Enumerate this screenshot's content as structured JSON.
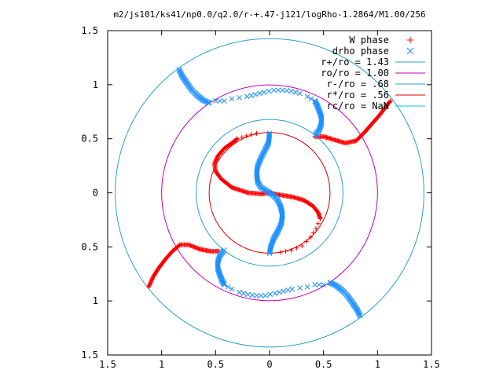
{
  "chart_data": {
    "type": "scatter",
    "title": "m2/js101/ks41/np0.0/q2.0/r-+.47-j121/logRho-1.2864/M1.00/256",
    "xlim": [
      -1.5,
      1.5
    ],
    "ylim": [
      -1.5,
      1.5
    ],
    "x_ticks": [
      -1.5,
      -1,
      -0.5,
      0,
      0.5,
      1,
      1.5
    ],
    "x_tick_labels": [
      "1.5",
      "1",
      "0.5",
      "0",
      "0.5",
      "1",
      "1.5"
    ],
    "y_ticks": [
      1.5,
      1,
      0.5,
      0,
      -0.5,
      -1,
      -1.5
    ],
    "y_tick_labels": [
      "1.5",
      "1",
      "0.5",
      "0",
      "0.5",
      "1",
      "1.5"
    ],
    "grid": false,
    "legend_position": "top-right",
    "colors": {
      "w_phase": "#ff0000",
      "drho_phase": "#1e90ff",
      "r_plus": "#2b9fd1",
      "ro": "#c000c0",
      "r_minus": "#2b9fd1",
      "r_star": "#dd0000",
      "rc": "#00c8c8"
    },
    "circles": [
      {
        "label": "r+/ro = 1.43",
        "radius": 1.43,
        "color_key": "r_plus"
      },
      {
        "label": "ro/ro = 1.00",
        "radius": 1.0,
        "color_key": "ro"
      },
      {
        "label": "r-/ro = .68",
        "radius": 0.68,
        "color_key": "r_minus"
      },
      {
        "label": "r*/ro = .56",
        "radius": 0.56,
        "color_key": "r_star"
      },
      {
        "label": "rc/ro = NaN",
        "radius": null,
        "color_key": "rc"
      }
    ],
    "series": [
      {
        "name": "W phase",
        "marker": "plus",
        "color_key": "w_phase",
        "arms": [
          {
            "points": [
              [
                0,
                0
              ],
              [
                -0.08,
                -0.01
              ],
              [
                -0.2,
                0.0
              ],
              [
                -0.35,
                0.05
              ],
              [
                -0.45,
                0.13
              ],
              [
                -0.5,
                0.2
              ],
              [
                -0.51,
                0.27
              ],
              [
                -0.48,
                0.34
              ],
              [
                -0.42,
                0.41
              ],
              [
                -0.35,
                0.46
              ],
              [
                -0.3,
                0.5
              ]
            ],
            "dense": true
          },
          {
            "points": [
              [
                -0.3,
                0.5
              ],
              [
                -0.17,
                0.54
              ],
              [
                -0.12,
                0.55
              ]
            ],
            "dense": false
          },
          {
            "points": [
              [
                0,
                0
              ],
              [
                0.1,
                -0.02
              ],
              [
                0.22,
                -0.04
              ],
              [
                0.32,
                -0.07
              ],
              [
                0.4,
                -0.12
              ],
              [
                0.45,
                -0.18
              ],
              [
                0.47,
                -0.24
              ]
            ],
            "dense": true
          },
          {
            "points": [
              [
                0.47,
                -0.24
              ],
              [
                0.43,
                -0.33
              ],
              [
                0.38,
                -0.41
              ],
              [
                0.3,
                -0.49
              ],
              [
                0.2,
                -0.53
              ],
              [
                0.1,
                -0.55
              ]
            ],
            "dense": false
          },
          {
            "points": [
              [
                0.42,
                0.52
              ],
              [
                0.5,
                0.52
              ],
              [
                0.6,
                0.49
              ],
              [
                0.7,
                0.46
              ],
              [
                0.8,
                0.48
              ],
              [
                0.88,
                0.56
              ],
              [
                0.95,
                0.64
              ],
              [
                1.02,
                0.72
              ],
              [
                1.08,
                0.8
              ],
              [
                1.12,
                0.85
              ]
            ],
            "dense": true
          },
          {
            "points": [
              [
                -0.47,
                -0.54
              ],
              [
                -0.55,
                -0.54
              ],
              [
                -0.65,
                -0.52
              ],
              [
                -0.75,
                -0.48
              ],
              [
                -0.83,
                -0.48
              ],
              [
                -0.9,
                -0.54
              ],
              [
                -0.97,
                -0.62
              ],
              [
                -1.03,
                -0.7
              ],
              [
                -1.08,
                -0.78
              ],
              [
                -1.12,
                -0.87
              ]
            ],
            "dense": true
          }
        ]
      },
      {
        "name": "drho phase",
        "marker": "cross",
        "color_key": "drho_phase",
        "arms": [
          {
            "points": [
              [
                0,
                0.55
              ],
              [
                -0.01,
                0.46
              ],
              [
                -0.04,
                0.4
              ],
              [
                -0.08,
                0.32
              ],
              [
                -0.11,
                0.25
              ],
              [
                -0.12,
                0.18
              ],
              [
                -0.11,
                0.1
              ],
              [
                -0.08,
                0.05
              ],
              [
                -0.03,
                0.02
              ],
              [
                0,
                0
              ],
              [
                0.03,
                -0.02
              ],
              [
                0.07,
                -0.06
              ],
              [
                0.1,
                -0.12
              ],
              [
                0.12,
                -0.2
              ],
              [
                0.11,
                -0.28
              ],
              [
                0.08,
                -0.35
              ],
              [
                0.04,
                -0.42
              ],
              [
                0.01,
                -0.5
              ],
              [
                0,
                -0.56
              ]
            ],
            "dense": true
          },
          {
            "points": [
              [
                0.42,
                0.53
              ],
              [
                0.46,
                0.58
              ],
              [
                0.48,
                0.64
              ],
              [
                0.48,
                0.7
              ],
              [
                0.46,
                0.76
              ],
              [
                0.44,
                0.81
              ],
              [
                0.42,
                0.85
              ]
            ],
            "dense": true
          },
          {
            "points": [
              [
                0.42,
                0.85
              ],
              [
                0.35,
                0.89
              ],
              [
                0.28,
                0.92
              ],
              [
                0.2,
                0.94
              ],
              [
                0.12,
                0.95
              ],
              [
                0.04,
                0.95
              ],
              [
                -0.05,
                0.93
              ],
              [
                -0.13,
                0.91
              ],
              [
                -0.21,
                0.89
              ],
              [
                -0.28,
                0.88
              ],
              [
                -0.35,
                0.87
              ],
              [
                -0.42,
                0.85
              ],
              [
                -0.5,
                0.85
              ],
              [
                -0.56,
                0.83
              ]
            ],
            "dense": false
          },
          {
            "points": [
              [
                -0.56,
                0.83
              ],
              [
                -0.62,
                0.86
              ],
              [
                -0.67,
                0.9
              ],
              [
                -0.72,
                0.95
              ],
              [
                -0.77,
                1.02
              ],
              [
                -0.81,
                1.08
              ],
              [
                -0.84,
                1.14
              ]
            ],
            "dense": true
          },
          {
            "points": [
              [
                -0.42,
                -0.53
              ],
              [
                -0.46,
                -0.58
              ],
              [
                -0.48,
                -0.64
              ],
              [
                -0.48,
                -0.7
              ],
              [
                -0.46,
                -0.76
              ],
              [
                -0.44,
                -0.81
              ],
              [
                -0.42,
                -0.85
              ]
            ],
            "dense": true
          },
          {
            "points": [
              [
                -0.42,
                -0.85
              ],
              [
                -0.35,
                -0.89
              ],
              [
                -0.28,
                -0.92
              ],
              [
                -0.2,
                -0.94
              ],
              [
                -0.12,
                -0.95
              ],
              [
                -0.04,
                -0.95
              ],
              [
                0.05,
                -0.93
              ],
              [
                0.13,
                -0.91
              ],
              [
                0.21,
                -0.89
              ],
              [
                0.28,
                -0.88
              ],
              [
                0.35,
                -0.87
              ],
              [
                0.42,
                -0.85
              ],
              [
                0.5,
                -0.85
              ],
              [
                0.56,
                -0.83
              ]
            ],
            "dense": false
          },
          {
            "points": [
              [
                0.56,
                -0.83
              ],
              [
                0.62,
                -0.86
              ],
              [
                0.67,
                -0.9
              ],
              [
                0.72,
                -0.95
              ],
              [
                0.77,
                -1.02
              ],
              [
                0.81,
                -1.08
              ],
              [
                0.84,
                -1.14
              ]
            ],
            "dense": true
          }
        ]
      }
    ]
  }
}
